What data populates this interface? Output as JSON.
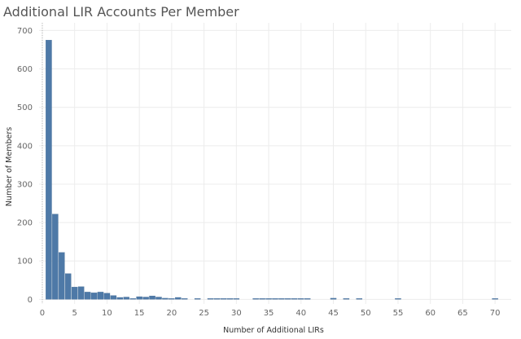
{
  "chart_data": {
    "type": "bar",
    "title": "Additional LIR Accounts Per Member",
    "xlabel": "Number of Additional LIRs",
    "ylabel": "Number of Members",
    "xlim": [
      -0.5,
      72.5
    ],
    "ylim": [
      -12,
      720
    ],
    "x_ticks": [
      0,
      5,
      10,
      15,
      20,
      25,
      30,
      35,
      40,
      45,
      50,
      55,
      60,
      65,
      70
    ],
    "y_ticks": [
      0,
      100,
      200,
      300,
      400,
      500,
      600,
      700
    ],
    "grid": true,
    "bar_color": "#4e79a7",
    "x": [
      1,
      2,
      3,
      4,
      5,
      6,
      7,
      8,
      9,
      10,
      11,
      12,
      13,
      14,
      15,
      16,
      17,
      18,
      19,
      20,
      21,
      22,
      24,
      26,
      27,
      28,
      29,
      30,
      33,
      34,
      35,
      36,
      37,
      38,
      39,
      40,
      41,
      45,
      47,
      49,
      55,
      70
    ],
    "values": [
      675,
      222,
      122,
      67,
      32,
      33,
      19,
      17,
      19,
      16,
      10,
      5,
      6,
      2,
      7,
      6,
      9,
      6,
      3,
      2,
      5,
      1,
      2,
      1,
      1,
      1,
      1,
      1,
      1,
      1,
      1,
      1,
      1,
      1,
      1,
      1,
      1,
      3,
      1,
      1,
      1,
      1
    ]
  },
  "page": {
    "title": "Additional LIR Accounts Per Member"
  }
}
